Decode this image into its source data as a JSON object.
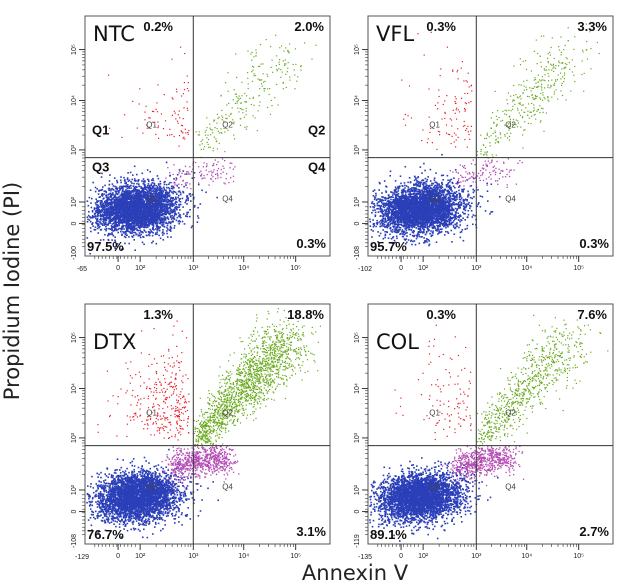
{
  "figure": {
    "ylabel": "Propidium Iodine (PI)",
    "xlabel": "Annexin V"
  },
  "chart_data": [
    {
      "type": "scatter",
      "sample": "NTC",
      "quadrant_percent": {
        "Q1": "0.2%",
        "Q2": "2.0%",
        "Q3": "97.5%",
        "Q4": "0.3%"
      },
      "quadrant_labels": {
        "large": [
          "Q1",
          "Q2",
          "Q3",
          "Q4"
        ],
        "small": [
          "Q1",
          "Q2",
          "Q3",
          "Q4"
        ]
      },
      "x_min_label": "-65",
      "y_min_label": "-100",
      "x_scale": "biexponential",
      "y_scale": "biexponential",
      "x_ticks": [
        "0",
        "10²",
        "10³",
        "10⁴",
        "10⁵"
      ],
      "y_ticks": [
        "0",
        "10²",
        "10³",
        "10⁴",
        "10⁵"
      ],
      "gate": {
        "x": 1000,
        "y": 500
      },
      "colors": {
        "Q1": "#e8202a",
        "Q2": "#6aaa1e",
        "Q3": "#2b3fb8",
        "Q4": "#b44bb4"
      }
    },
    {
      "type": "scatter",
      "sample": "VFL",
      "quadrant_percent": {
        "Q1": "0.3%",
        "Q2": "3.3%",
        "Q3": "95.7%",
        "Q4": "0.3%"
      },
      "quadrant_labels": {
        "large": [],
        "small": [
          "Q1",
          "Q2",
          "Q3",
          "Q4"
        ]
      },
      "x_min_label": "-102",
      "y_min_label": "-108",
      "x_scale": "biexponential",
      "y_scale": "biexponential",
      "x_ticks": [
        "0",
        "10²",
        "10³",
        "10⁴",
        "10⁵"
      ],
      "y_ticks": [
        "0",
        "10²",
        "10³",
        "10⁴",
        "10⁵"
      ],
      "gate": {
        "x": 1000,
        "y": 500
      },
      "colors": {
        "Q1": "#e8202a",
        "Q2": "#6aaa1e",
        "Q3": "#2b3fb8",
        "Q4": "#b44bb4"
      }
    },
    {
      "type": "scatter",
      "sample": "DTX",
      "quadrant_percent": {
        "Q1": "1.3%",
        "Q2": "18.8%",
        "Q3": "76.7%",
        "Q4": "3.1%"
      },
      "quadrant_labels": {
        "large": [],
        "small": [
          "Q1",
          "Q2",
          "Q3",
          "Q4"
        ]
      },
      "x_min_label": "-129",
      "y_min_label": "-108",
      "x_scale": "biexponential",
      "y_scale": "biexponential",
      "x_ticks": [
        "0",
        "10²",
        "10³",
        "10⁴",
        "10⁵"
      ],
      "y_ticks": [
        "0",
        "10²",
        "10³",
        "10⁴",
        "10⁵"
      ],
      "gate": {
        "x": 1000,
        "y": 500
      },
      "colors": {
        "Q1": "#e8202a",
        "Q2": "#6aaa1e",
        "Q3": "#2b3fb8",
        "Q4": "#b44bb4"
      }
    },
    {
      "type": "scatter",
      "sample": "COL",
      "quadrant_percent": {
        "Q1": "0.3%",
        "Q2": "7.6%",
        "Q3": "89.1%",
        "Q4": "2.7%"
      },
      "quadrant_labels": {
        "large": [],
        "small": [
          "Q1",
          "Q2",
          "Q3",
          "Q4"
        ]
      },
      "x_min_label": "-135",
      "y_min_label": "-119",
      "x_scale": "biexponential",
      "y_scale": "biexponential",
      "x_ticks": [
        "0",
        "10²",
        "10³",
        "10⁴",
        "10⁵"
      ],
      "y_ticks": [
        "0",
        "10²",
        "10³",
        "10⁴",
        "10⁵"
      ],
      "gate": {
        "x": 1000,
        "y": 500
      },
      "colors": {
        "Q1": "#e8202a",
        "Q2": "#6aaa1e",
        "Q3": "#2b3fb8",
        "Q4": "#b44bb4"
      }
    }
  ]
}
